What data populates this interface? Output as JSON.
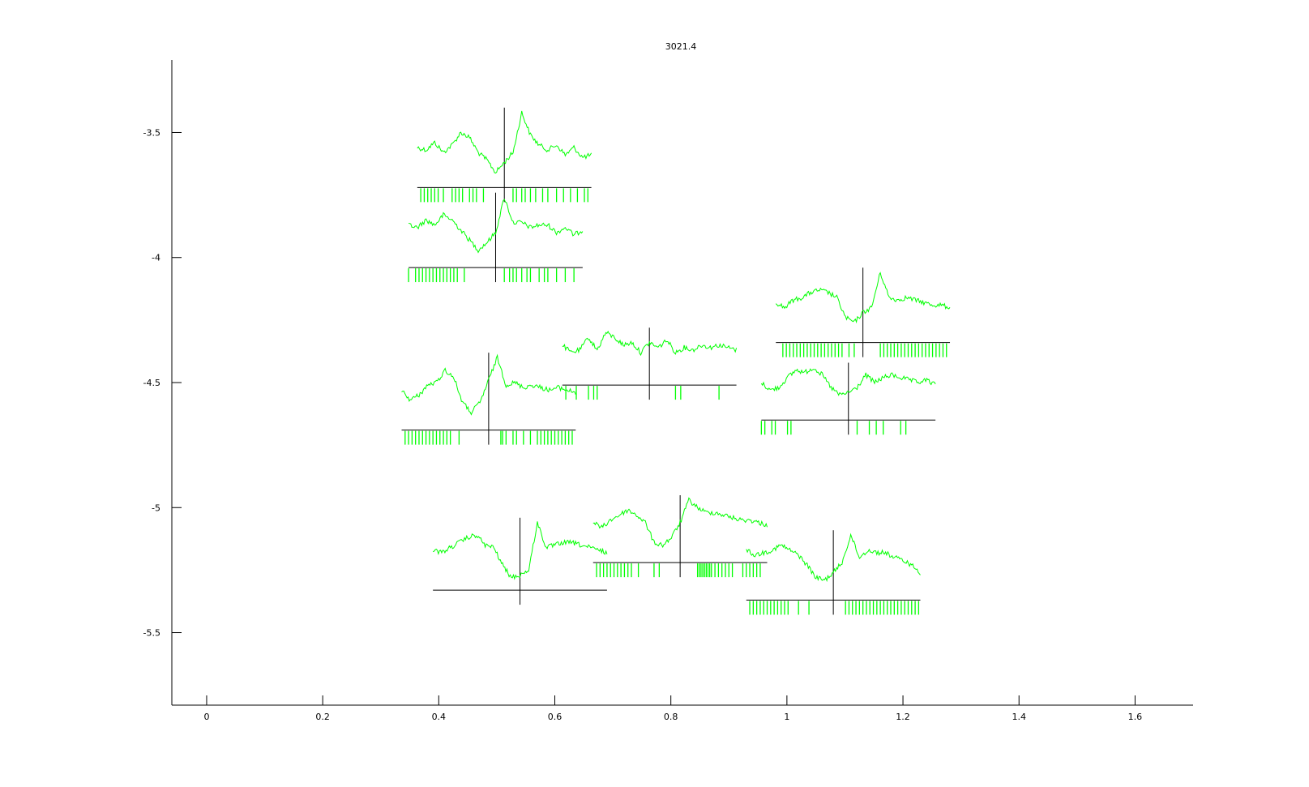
{
  "chart_data": {
    "type": "line",
    "title": "3021.4",
    "xlabel": "",
    "ylabel": "",
    "xlim": [
      -0.06,
      1.7
    ],
    "ylim": [
      -5.79,
      -3.21
    ],
    "x_ticks": [
      0,
      0.2,
      0.4,
      0.6,
      0.8,
      1,
      1.2,
      1.4,
      1.6
    ],
    "x_tick_labels": [
      "0",
      "0.2",
      "0.4",
      "0.6",
      "0.8",
      "1",
      "1.2",
      "1.4",
      "1.6"
    ],
    "y_ticks": [
      -3.5,
      -4,
      -4.5,
      -5,
      -5.5
    ],
    "y_tick_labels": [
      "-3.5",
      "-4",
      "-4.5",
      "-5",
      "-5.5"
    ],
    "grid": false,
    "trace_color": "#00ff00",
    "axis_color": "#000000",
    "units": [
      {
        "cx": 0.513,
        "cy": -3.72,
        "trace_y": [
          -3.56,
          -3.57,
          -3.54,
          -3.58,
          -3.55,
          -3.5,
          -3.52,
          -3.58,
          -3.61,
          -3.66,
          -3.62,
          -3.58,
          -3.42,
          -3.51,
          -3.55,
          -3.57,
          -3.55,
          -3.59,
          -3.56,
          -3.6,
          -3.59
        ],
        "rasters": [
          0.02,
          0.04,
          0.06,
          0.08,
          0.1,
          0.12,
          0.15,
          0.2,
          0.22,
          0.24,
          0.26,
          0.3,
          0.32,
          0.34,
          0.38,
          0.55,
          0.57,
          0.6,
          0.62,
          0.65,
          0.68,
          0.72,
          0.75,
          0.8,
          0.84,
          0.88,
          0.92,
          0.96,
          0.98
        ]
      },
      {
        "cx": 0.498,
        "cy": -4.04,
        "trace_y": [
          -3.87,
          -3.88,
          -3.85,
          -3.87,
          -3.83,
          -3.85,
          -3.89,
          -3.93,
          -3.97,
          -3.94,
          -3.9,
          -3.76,
          -3.86,
          -3.86,
          -3.88,
          -3.87,
          -3.87,
          -3.9,
          -3.88,
          -3.91,
          -3.89
        ],
        "rasters": [
          0.0,
          0.04,
          0.06,
          0.08,
          0.1,
          0.12,
          0.14,
          0.16,
          0.18,
          0.2,
          0.22,
          0.24,
          0.26,
          0.28,
          0.32,
          0.55,
          0.58,
          0.6,
          0.62,
          0.65,
          0.68,
          0.7,
          0.75,
          0.78,
          0.8,
          0.85,
          0.9,
          0.95
        ]
      },
      {
        "cx": 1.131,
        "cy": -4.34,
        "trace_y": [
          -4.18,
          -4.2,
          -4.17,
          -4.16,
          -4.14,
          -4.13,
          -4.14,
          -4.16,
          -4.24,
          -4.26,
          -4.22,
          -4.2,
          -4.06,
          -4.16,
          -4.17,
          -4.16,
          -4.17,
          -4.18,
          -4.19,
          -4.19,
          -4.2
        ],
        "rasters": [
          0.04,
          0.06,
          0.08,
          0.1,
          0.12,
          0.14,
          0.16,
          0.18,
          0.2,
          0.22,
          0.24,
          0.26,
          0.28,
          0.3,
          0.32,
          0.34,
          0.36,
          0.38,
          0.42,
          0.45,
          0.6,
          0.62,
          0.64,
          0.66,
          0.68,
          0.7,
          0.72,
          0.74,
          0.76,
          0.78,
          0.8,
          0.82,
          0.84,
          0.86,
          0.88,
          0.9,
          0.92,
          0.94,
          0.96,
          0.98
        ]
      },
      {
        "cx": 0.763,
        "cy": -4.51,
        "trace_y": [
          -4.35,
          -4.38,
          -4.37,
          -4.32,
          -4.37,
          -4.3,
          -4.32,
          -4.35,
          -4.34,
          -4.38,
          -4.34,
          -4.36,
          -4.33,
          -4.38,
          -4.36,
          -4.37,
          -4.35,
          -4.36,
          -4.35,
          -4.36,
          -4.37
        ],
        "rasters": [
          0.02,
          0.08,
          0.15,
          0.18,
          0.2,
          0.65,
          0.68,
          0.9
        ]
      },
      {
        "cx": 1.106,
        "cy": -4.65,
        "trace_y": [
          -4.5,
          -4.53,
          -4.52,
          -4.48,
          -4.45,
          -4.46,
          -4.44,
          -4.47,
          -4.52,
          -4.55,
          -4.54,
          -4.52,
          -4.47,
          -4.5,
          -4.48,
          -4.47,
          -4.48,
          -4.49,
          -4.5,
          -4.49,
          -4.51
        ],
        "rasters": [
          0.0,
          0.02,
          0.06,
          0.08,
          0.15,
          0.17,
          0.55,
          0.62,
          0.66,
          0.7,
          0.8,
          0.83
        ]
      },
      {
        "cx": 0.486,
        "cy": -4.69,
        "trace_y": [
          -4.53,
          -4.57,
          -4.55,
          -4.51,
          -4.5,
          -4.45,
          -4.48,
          -4.58,
          -4.62,
          -4.58,
          -4.49,
          -4.4,
          -4.51,
          -4.5,
          -4.52,
          -4.51,
          -4.52,
          -4.53,
          -4.52,
          -4.53,
          -4.54
        ],
        "rasters": [
          0.02,
          0.04,
          0.06,
          0.08,
          0.1,
          0.12,
          0.14,
          0.16,
          0.18,
          0.2,
          0.22,
          0.24,
          0.26,
          0.28,
          0.33,
          0.57,
          0.58,
          0.6,
          0.64,
          0.66,
          0.7,
          0.74,
          0.78,
          0.8,
          0.82,
          0.84,
          0.86,
          0.88,
          0.9,
          0.92,
          0.94,
          0.96,
          0.98
        ]
      },
      {
        "cx": 0.816,
        "cy": -5.22,
        "trace_y": [
          -5.06,
          -5.08,
          -5.05,
          -5.03,
          -5.01,
          -5.03,
          -5.06,
          -5.14,
          -5.15,
          -5.12,
          -5.06,
          -4.97,
          -5.0,
          -5.02,
          -5.02,
          -5.03,
          -5.04,
          -5.05,
          -5.05,
          -5.06,
          -5.07
        ],
        "rasters": [
          0.02,
          0.04,
          0.06,
          0.08,
          0.1,
          0.12,
          0.14,
          0.16,
          0.18,
          0.2,
          0.22,
          0.26,
          0.35,
          0.38,
          0.6,
          0.61,
          0.62,
          0.63,
          0.64,
          0.65,
          0.66,
          0.67,
          0.68,
          0.7,
          0.72,
          0.74,
          0.76,
          0.78,
          0.8,
          0.86,
          0.88,
          0.9,
          0.92,
          0.94,
          0.96
        ]
      },
      {
        "cx": 0.54,
        "cy": -5.33,
        "trace_y": [
          -5.17,
          -5.18,
          -5.16,
          -5.14,
          -5.12,
          -5.11,
          -5.15,
          -5.16,
          -5.23,
          -5.28,
          -5.27,
          -5.25,
          -5.06,
          -5.16,
          -5.15,
          -5.14,
          -5.14,
          -5.15,
          -5.16,
          -5.17,
          -5.18
        ],
        "rasters": []
      },
      {
        "cx": 1.08,
        "cy": -5.37,
        "trace_y": [
          -5.17,
          -5.19,
          -5.18,
          -5.17,
          -5.15,
          -5.17,
          -5.19,
          -5.23,
          -5.28,
          -5.29,
          -5.26,
          -5.22,
          -5.11,
          -5.2,
          -5.17,
          -5.18,
          -5.18,
          -5.2,
          -5.21,
          -5.23,
          -5.26
        ],
        "rasters": [
          0.02,
          0.04,
          0.06,
          0.08,
          0.1,
          0.12,
          0.14,
          0.16,
          0.18,
          0.2,
          0.22,
          0.24,
          0.3,
          0.36,
          0.57,
          0.59,
          0.61,
          0.63,
          0.65,
          0.67,
          0.69,
          0.71,
          0.73,
          0.75,
          0.77,
          0.79,
          0.81,
          0.83,
          0.85,
          0.87,
          0.89,
          0.91,
          0.93,
          0.95,
          0.97,
          0.99
        ]
      }
    ]
  }
}
